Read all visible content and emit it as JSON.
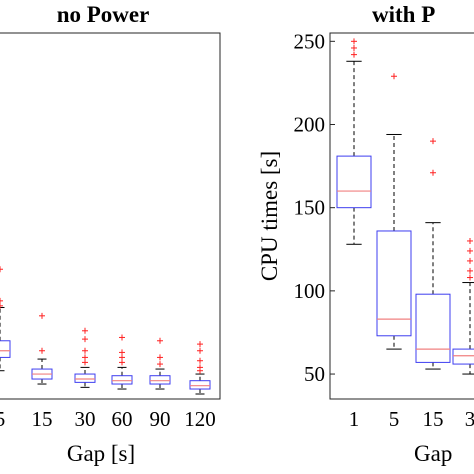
{
  "colors": {
    "box": "#3d3df0",
    "median": "#f08080",
    "whisker": "#000000",
    "outlier": "#ff2020"
  },
  "chart_data": [
    {
      "type": "box",
      "title": "no Power",
      "xlabel": "Gap [s]",
      "ylabel": "",
      "categories": [
        "5",
        "15",
        "30",
        "60",
        "90",
        "120"
      ],
      "ylim": [
        35,
        255
      ],
      "yticks": [],
      "grid": false,
      "boxes": [
        {
          "category": "5",
          "q1": 60,
          "median": 64,
          "q3": 70,
          "whisker_low": 52,
          "whisker_high": 90,
          "outliers": [
            91,
            94,
            113
          ]
        },
        {
          "category": "15",
          "q1": 47,
          "median": 50,
          "q3": 53,
          "whisker_low": 44,
          "whisker_high": 59,
          "outliers": [
            64,
            85
          ]
        },
        {
          "category": "30",
          "q1": 45,
          "median": 47,
          "q3": 50,
          "whisker_low": 42,
          "whisker_high": 54,
          "outliers": [
            57,
            60,
            64,
            71,
            76
          ]
        },
        {
          "category": "60",
          "q1": 44,
          "median": 46,
          "q3": 49,
          "whisker_low": 41,
          "whisker_high": 54,
          "outliers": [
            57,
            60,
            63,
            72
          ]
        },
        {
          "category": "90",
          "q1": 44,
          "median": 46,
          "q3": 49,
          "whisker_low": 41,
          "whisker_high": 53,
          "outliers": [
            56,
            60,
            70
          ]
        },
        {
          "category": "120",
          "q1": 41,
          "median": 43,
          "q3": 46,
          "whisker_low": 38,
          "whisker_high": 50,
          "outliers": [
            52,
            54,
            58,
            64,
            68
          ]
        }
      ]
    },
    {
      "type": "box",
      "title": "with P",
      "xlabel": "Gap",
      "ylabel": "CPU times [s]",
      "categories": [
        "1",
        "5",
        "15",
        "3"
      ],
      "ylim": [
        35,
        255
      ],
      "yticks": [
        50,
        100,
        150,
        200,
        250
      ],
      "grid": false,
      "boxes": [
        {
          "category": "1",
          "q1": 150,
          "median": 160,
          "q3": 181,
          "whisker_low": 128,
          "whisker_high": 238,
          "outliers": [
            242,
            246,
            250
          ]
        },
        {
          "category": "5",
          "q1": 73,
          "median": 83,
          "q3": 136,
          "whisker_low": 65,
          "whisker_high": 194,
          "outliers": [
            229
          ]
        },
        {
          "category": "15",
          "q1": 57,
          "median": 65,
          "q3": 98,
          "whisker_low": 53,
          "whisker_high": 141,
          "outliers": [
            171,
            190
          ]
        },
        {
          "category": "3",
          "q1": 56,
          "median": 61,
          "q3": 65,
          "whisker_low": 50,
          "whisker_high": 105,
          "outliers": [
            108,
            112,
            118,
            124,
            130
          ]
        }
      ]
    }
  ]
}
